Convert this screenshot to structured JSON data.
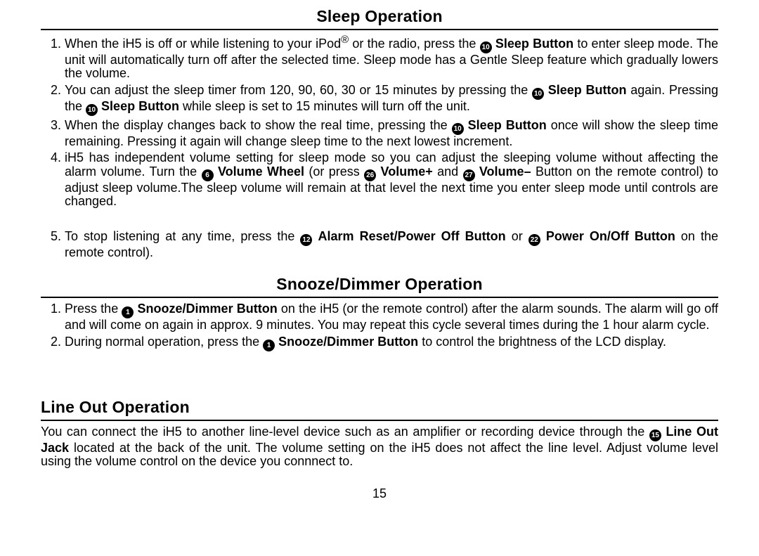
{
  "page_number": "15",
  "typography": {
    "title_fontsize": 23,
    "body_fontsize": 18,
    "title_weight": "bold",
    "font_family": "Arial, Helvetica, sans-serif",
    "rule_color": "#000000",
    "circled_bg": "#000000",
    "circled_fg": "#ffffff",
    "background_color": "#ffffff",
    "text_color": "#000000"
  },
  "section1": {
    "title": "Sleep Operation",
    "items": [
      {
        "pre1": "When the iH5 is off or while listening to your iPod",
        "reg": "®",
        "pre2": " or the radio, press the ",
        "c1": "10",
        "b1": "Sleep Button",
        "post": " to enter sleep mode. The unit will automatically turn off after the selected time. Sleep mode has a Gentle Sleep feature which gradually lowers the volume."
      },
      {
        "pre1": "You can adjust the sleep timer from 120, 90, 60, 30 or 15 minutes by pressing the ",
        "c1": "10",
        "b1": "Sleep Button",
        "mid1": " again. Pressing the ",
        "c2": "10",
        "b2": "Sleep Button",
        "post": " while sleep is set to 15 minutes will turn off the unit."
      },
      {
        "pre1": "When the display changes back to show the real time, pressing the ",
        "c1": "10",
        "b1": "Sleep Button",
        "post": " once will show the sleep time remaining. Pressing it again will change sleep time to the next lowest increment."
      },
      {
        "pre1": "iH5 has independent volume setting for sleep mode so you can adjust the sleeping volume without affecting the alarm volume. Turn the ",
        "c1": "6",
        "b1": "Volume Wheel",
        "mid1": " (or press ",
        "c2": "26",
        "b2": "Volume+",
        "mid2": " and ",
        "c3": "27",
        "b3": "Volume–",
        "post": " Button on the remote control) to adjust sleep volume.The sleep volume will remain at that level the next time you enter sleep mode until controls are changed."
      },
      {
        "pre1": "To stop listening at any time, press the ",
        "c1": "12",
        "b1": "Alarm Reset/Power Off Button",
        "mid1": " or ",
        "c2": "22",
        "b2": "Power On/Off Button",
        "post": " on the remote control)."
      }
    ]
  },
  "section2": {
    "title": "Snooze/Dimmer Operation",
    "items": [
      {
        "pre1": "Press the ",
        "c1": "1",
        "b1": "Snooze/Dimmer Button",
        "post": " on the iH5 (or the remote control) after the alarm sounds. The alarm will go off and will come on again in approx. 9 minutes. You may repeat this cycle several times during the 1 hour alarm cycle."
      },
      {
        "pre1": "During normal operation, press the ",
        "c1": "1",
        "b1": "Snooze/Dimmer Button",
        "post": " to control the brightness of the LCD display."
      }
    ]
  },
  "section3": {
    "title": "Line Out Operation",
    "body": {
      "pre1": "You can connect the iH5 to another line-level device such as an amplifier or recording device through the ",
      "c1": "15",
      "b1": "Line Out Jack",
      "post": " located at the back of the unit. The volume setting on the iH5 does not affect the line level. Adjust volume level using the volume control on the device you connnect to."
    }
  }
}
